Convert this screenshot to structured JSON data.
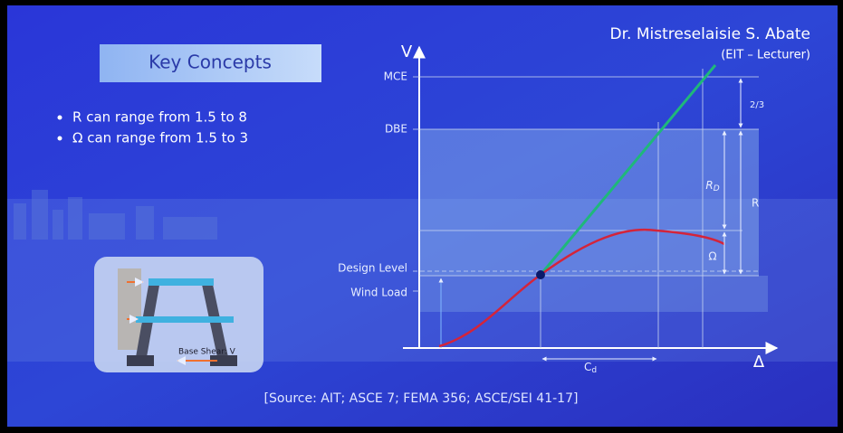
{
  "header": {
    "author": "Dr. Mistreselaisie S. Abate",
    "role": "(EIT – Lecturer)"
  },
  "concepts": {
    "title": "Key Concepts",
    "bullets": [
      "R can range from 1.5 to 8",
      "Ω can range from 1.5 to 3"
    ]
  },
  "figure": {
    "label": "Base Shear: V"
  },
  "diagram": {
    "y_axis": "V",
    "x_axis": "Δ",
    "levels": [
      "MCE",
      "DBE",
      "Design Level",
      "Wind Load"
    ],
    "ratio": "2/3",
    "rd": {
      "base": "R",
      "sub": "D"
    },
    "r": "R",
    "omega": "Ω",
    "cd": {
      "base": "C",
      "sub": "d"
    }
  },
  "source": "[Source: AIT; ASCE 7; FEMA 356; ASCE/SEI 41-17]"
}
